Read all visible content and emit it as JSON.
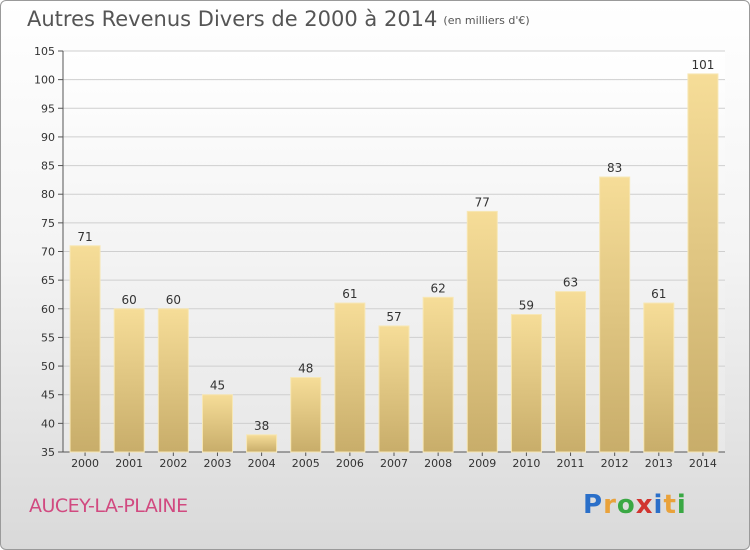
{
  "header": {
    "title": "Autres Revenus Divers de 2000 à 2014",
    "unit": "(en milliers d'€)"
  },
  "footer": {
    "commune": "AUCEY-LA-PLAINE",
    "logo_letters": [
      "P",
      "r",
      "o",
      "x",
      "i",
      "t",
      "i"
    ],
    "logo_colors": [
      "#2a6fc9",
      "#e9a23b",
      "#3aa844",
      "#d1342f",
      "#2a6fc9",
      "#e9a23b",
      "#3aa844"
    ]
  },
  "chart_data": {
    "type": "bar",
    "title": "Autres Revenus Divers de 2000 à 2014",
    "subtitle": "(en milliers d'€)",
    "categories": [
      "2000",
      "2001",
      "2002",
      "2003",
      "2004",
      "2005",
      "2006",
      "2007",
      "2008",
      "2009",
      "2010",
      "2011",
      "2012",
      "2013",
      "2014"
    ],
    "values": [
      71,
      60,
      60,
      45,
      38,
      48,
      61,
      57,
      62,
      77,
      59,
      63,
      83,
      61,
      101
    ],
    "ylim": [
      35,
      105
    ],
    "yticks": [
      35,
      40,
      45,
      50,
      55,
      60,
      65,
      70,
      75,
      80,
      85,
      90,
      95,
      100,
      105
    ],
    "grid": true,
    "data_labels": true,
    "bar_color": "#e8ce8a"
  }
}
